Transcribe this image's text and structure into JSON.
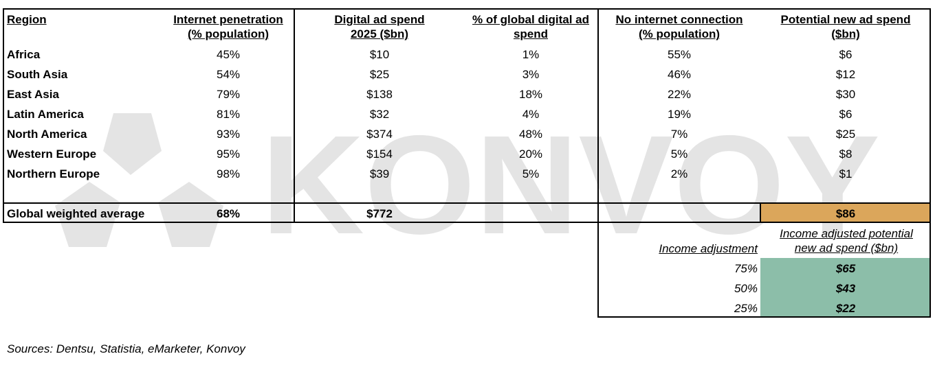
{
  "headers": {
    "region": "Region",
    "penetration": [
      "Internet penetration",
      "(% population)"
    ],
    "ad_spend": [
      "Digital ad spend",
      "2025 ($bn)"
    ],
    "pct_global": [
      "% of global digital ad",
      "spend"
    ],
    "no_internet": [
      "No internet connection",
      "(% population)"
    ],
    "potential": [
      "Potential new ad spend",
      "($bn)"
    ]
  },
  "rows": [
    {
      "region": "Africa",
      "penetration": "45%",
      "ad_spend": "$10",
      "pct_global": "1%",
      "no_internet": "55%",
      "potential": "$6"
    },
    {
      "region": "South Asia",
      "penetration": "54%",
      "ad_spend": "$25",
      "pct_global": "3%",
      "no_internet": "46%",
      "potential": "$12"
    },
    {
      "region": "East Asia",
      "penetration": "79%",
      "ad_spend": "$138",
      "pct_global": "18%",
      "no_internet": "22%",
      "potential": "$30"
    },
    {
      "region": "Latin America",
      "penetration": "81%",
      "ad_spend": "$32",
      "pct_global": "4%",
      "no_internet": "19%",
      "potential": "$6"
    },
    {
      "region": "North America",
      "penetration": "93%",
      "ad_spend": "$374",
      "pct_global": "48%",
      "no_internet": "7%",
      "potential": "$25"
    },
    {
      "region": "Western Europe",
      "penetration": "95%",
      "ad_spend": "$154",
      "pct_global": "20%",
      "no_internet": "5%",
      "potential": "$8"
    },
    {
      "region": "Northern Europe",
      "penetration": "98%",
      "ad_spend": "$39",
      "pct_global": "5%",
      "no_internet": "2%",
      "potential": "$1"
    }
  ],
  "total": {
    "label": "Global weighted average",
    "penetration": "68%",
    "ad_spend": "$772",
    "potential": "$86"
  },
  "income": {
    "label": "Income adjustment",
    "header": [
      "Income adjusted potential",
      "new ad spend ($bn)"
    ],
    "rows": [
      {
        "pct": "75%",
        "value": "$65"
      },
      {
        "pct": "50%",
        "value": "$43"
      },
      {
        "pct": "25%",
        "value": "$22"
      }
    ]
  },
  "watermark": "KONVOY",
  "sources": "Sources: Dentsu, Statistia, eMarketer, Konvoy",
  "colors": {
    "total_highlight": "#dba65b",
    "income_highlight": "#8cbea9",
    "watermark": "#e6e6e6"
  }
}
